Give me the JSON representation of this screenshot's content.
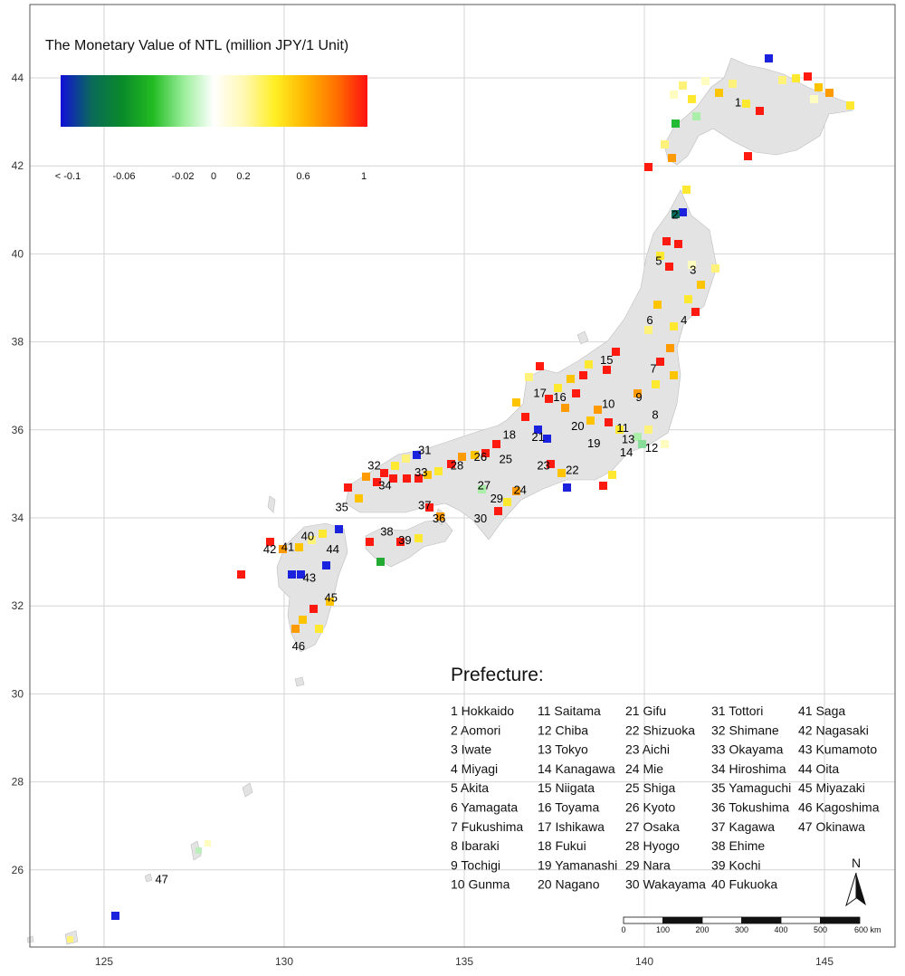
{
  "legend": {
    "title": "The Monetary Value of NTL (million JPY/1 Unit)",
    "colors": [
      "#1010d8",
      "#0a6a5a",
      "#0a8a2a",
      "#22bb22",
      "#99ee99",
      "#ffffff",
      "#fff8b0",
      "#ffee22",
      "#ffb300",
      "#ff7000",
      "#ff1010"
    ],
    "ticks": [
      "< -0.1",
      "-0.06",
      "-0.02",
      "0",
      "0.2",
      "0.6",
      "1"
    ]
  },
  "axes": {
    "x_ticks": [
      "125",
      "130",
      "135",
      "140",
      "145"
    ],
    "y_ticks": [
      "26",
      "28",
      "30",
      "32",
      "34",
      "36",
      "38",
      "40",
      "42",
      "44"
    ]
  },
  "map_labels": [
    {
      "text": "1",
      "lon": 142.6,
      "lat": 43.35
    },
    {
      "text": "2",
      "lon": 140.85,
      "lat": 40.8
    },
    {
      "text": "3",
      "lon": 141.35,
      "lat": 39.55
    },
    {
      "text": "4",
      "lon": 141.1,
      "lat": 38.4
    },
    {
      "text": "5",
      "lon": 140.4,
      "lat": 39.75
    },
    {
      "text": "6",
      "lon": 140.15,
      "lat": 38.4
    },
    {
      "text": "7",
      "lon": 140.25,
      "lat": 37.3
    },
    {
      "text": "8",
      "lon": 140.3,
      "lat": 36.25
    },
    {
      "text": "9",
      "lon": 139.85,
      "lat": 36.65
    },
    {
      "text": "10",
      "lon": 139.0,
      "lat": 36.5
    },
    {
      "text": "11",
      "lon": 139.4,
      "lat": 35.95
    },
    {
      "text": "12",
      "lon": 140.2,
      "lat": 35.5
    },
    {
      "text": "13",
      "lon": 139.55,
      "lat": 35.7
    },
    {
      "text": "14",
      "lon": 139.5,
      "lat": 35.4
    },
    {
      "text": "15",
      "lon": 138.95,
      "lat": 37.5
    },
    {
      "text": "16",
      "lon": 137.65,
      "lat": 36.65
    },
    {
      "text": "17",
      "lon": 137.1,
      "lat": 36.75
    },
    {
      "text": "18",
      "lon": 136.25,
      "lat": 35.8
    },
    {
      "text": "19",
      "lon": 138.6,
      "lat": 35.6
    },
    {
      "text": "20",
      "lon": 138.15,
      "lat": 36.0
    },
    {
      "text": "21",
      "lon": 137.05,
      "lat": 35.75
    },
    {
      "text": "22",
      "lon": 138.0,
      "lat": 35.0
    },
    {
      "text": "23",
      "lon": 137.2,
      "lat": 35.1
    },
    {
      "text": "24",
      "lon": 136.55,
      "lat": 34.55
    },
    {
      "text": "25",
      "lon": 136.15,
      "lat": 35.25
    },
    {
      "text": "26",
      "lon": 135.45,
      "lat": 35.3
    },
    {
      "text": "27",
      "lon": 135.55,
      "lat": 34.65
    },
    {
      "text": "28",
      "lon": 134.8,
      "lat": 35.1
    },
    {
      "text": "29",
      "lon": 135.9,
      "lat": 34.35
    },
    {
      "text": "30",
      "lon": 135.45,
      "lat": 33.9
    },
    {
      "text": "31",
      "lon": 133.9,
      "lat": 35.45
    },
    {
      "text": "32",
      "lon": 132.5,
      "lat": 35.1
    },
    {
      "text": "33",
      "lon": 133.8,
      "lat": 34.95
    },
    {
      "text": "34",
      "lon": 132.8,
      "lat": 34.65
    },
    {
      "text": "35",
      "lon": 131.6,
      "lat": 34.15
    },
    {
      "text": "36",
      "lon": 134.3,
      "lat": 33.9
    },
    {
      "text": "37",
      "lon": 133.9,
      "lat": 34.2
    },
    {
      "text": "38",
      "lon": 132.85,
      "lat": 33.6
    },
    {
      "text": "39",
      "lon": 133.35,
      "lat": 33.4
    },
    {
      "text": "40",
      "lon": 130.65,
      "lat": 33.5
    },
    {
      "text": "41",
      "lon": 130.1,
      "lat": 33.25
    },
    {
      "text": "42",
      "lon": 129.6,
      "lat": 33.2
    },
    {
      "text": "43",
      "lon": 130.7,
      "lat": 32.55
    },
    {
      "text": "44",
      "lon": 131.35,
      "lat": 33.2
    },
    {
      "text": "45",
      "lon": 131.3,
      "lat": 32.1
    },
    {
      "text": "46",
      "lon": 130.4,
      "lat": 31.0
    },
    {
      "text": "47",
      "lon": 126.6,
      "lat": 25.7
    }
  ],
  "prefecture_legend": {
    "title": "Prefecture:",
    "items": [
      "1 Hokkaido",
      "2 Aomori",
      "3 Iwate",
      "4 Miyagi",
      "5 Akita",
      "6 Yamagata",
      "7 Fukushima",
      "8 Ibaraki",
      "9 Tochigi",
      "10 Gunma",
      "11 Saitama",
      "12 Chiba",
      "13 Tokyo",
      "14 Kanagawa",
      "15 Niigata",
      "16 Toyama",
      "17 Ishikawa",
      "18 Fukui",
      "19 Yamanashi",
      "20 Nagano",
      "21 Gifu",
      "22 Shizuoka",
      "23 Aichi",
      "24 Mie",
      "25 Shiga",
      "26 Kyoto",
      "27 Osaka",
      "28 Hyogo",
      "29 Nara",
      "30 Wakayama",
      "31 Tottori",
      "32 Shimane",
      "33 Okayama",
      "34 Hiroshima",
      "35 Yamaguchi",
      "36 Tokushima",
      "37 Kagawa",
      "38 Ehime",
      "39 Kochi",
      "40 Fukuoka",
      "41 Saga",
      "42 Nagasaki",
      "43 Kumamoto",
      "44 Oita",
      "45 Miyazaki",
      "46 Kagoshima",
      "47 Okinawa"
    ]
  },
  "north_arrow": {
    "label": "N"
  },
  "scale_bar": {
    "labels": [
      "0",
      "100",
      "200",
      "300",
      "400",
      "500",
      "600 km"
    ]
  },
  "colors": {
    "land": "#e3e3e3",
    "grid": "#d4d4d4",
    "frame": "#555555"
  }
}
